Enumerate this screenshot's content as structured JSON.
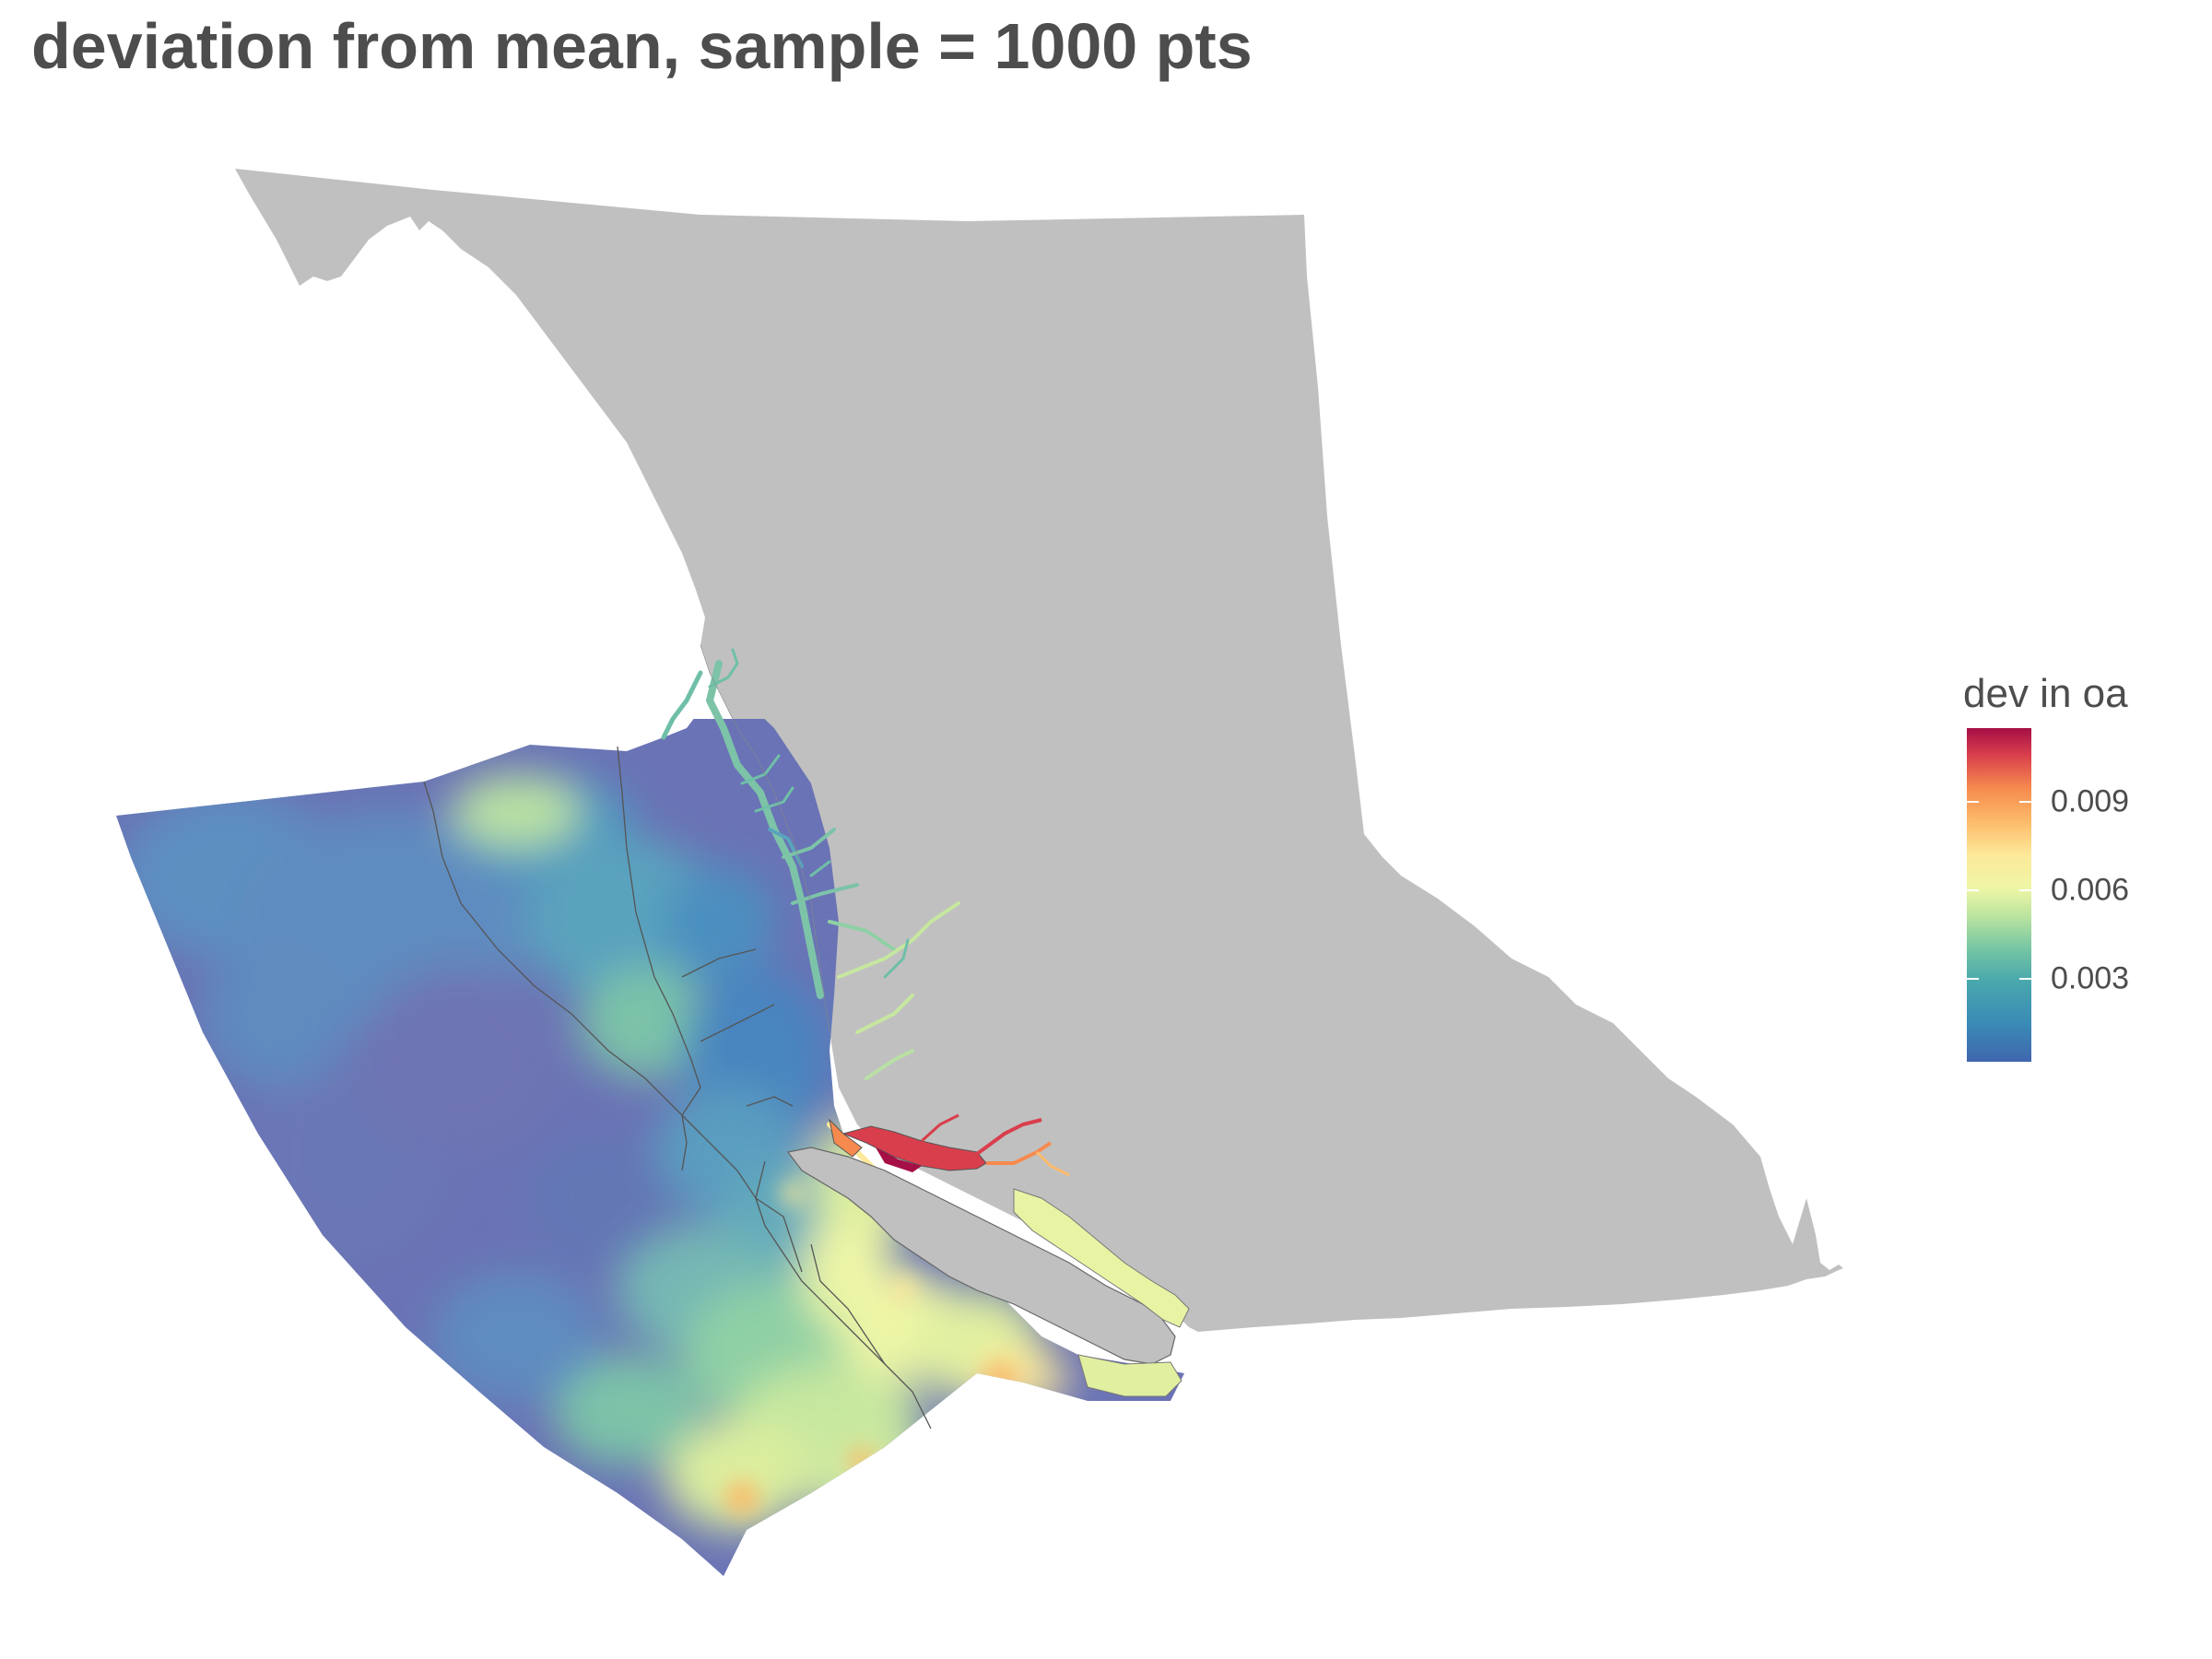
{
  "title": "deviation from mean, sample = 1000 pts",
  "legend": {
    "title": "dev in oa",
    "ticks": [
      {
        "label": "0.009",
        "value": 0.009
      },
      {
        "label": "0.006",
        "value": 0.006
      },
      {
        "label": "0.003",
        "value": 0.003
      }
    ],
    "range": [
      0.0002,
      0.0115
    ],
    "palette": [
      "#3f66ae",
      "#3a8cb6",
      "#49a7ad",
      "#76c6a3",
      "#bde59f",
      "#eef6a6",
      "#fde99a",
      "#fdbb6a",
      "#f68a4e",
      "#d93e4c",
      "#a50f46"
    ]
  },
  "colors": {
    "land": "#c0c0c0",
    "ocean_low": "#6a73b5",
    "boundary_lines": "#555555",
    "title_text": "#4d4d4d"
  }
}
